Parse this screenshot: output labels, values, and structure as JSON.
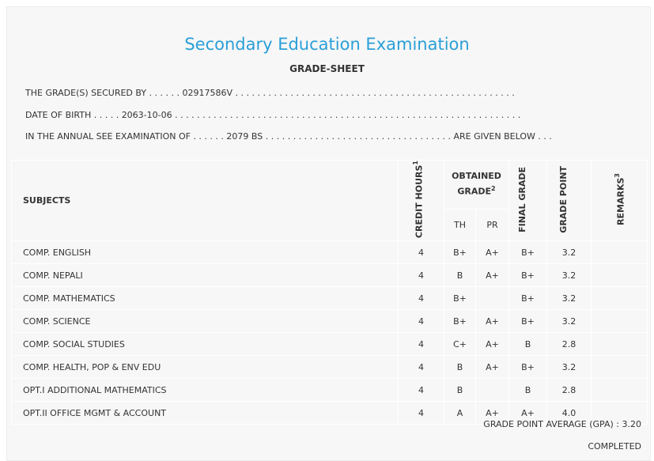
{
  "header": {
    "title": "Secondary Education Examination",
    "subtitle": "GRADE-SHEET"
  },
  "info": {
    "secured_by_label": "THE GRADE(S) SECURED BY . . . . . .",
    "secured_by_value": "02917586V",
    "secured_by_tail": ". . . . . . . . . . . . . . . . . . . . . . . . . . . . . . . . . . . . . . . . . . . . . . . . . . .",
    "dob_label": "DATE OF BIRTH . . . . .",
    "dob_value": "2063-10-06",
    "dob_tail": ". . . . . . . . . . . . . . . . . . . . . . . . . . . . . . . . . . . . . . . . . . . . . . . . . . . . . . . . . . . . . . .",
    "exam_label": "IN THE ANNUAL SEE EXAMINATION OF . . . . . .",
    "exam_value": "2079 BS",
    "exam_tail": ". . . . . . . . . . . . . . . . . . . . . . . . . . . . . . . . . . ARE GIVEN BELOW . . ."
  },
  "table": {
    "headers": {
      "subjects": "SUBJECTS",
      "credit": "CREDIT HOURS",
      "credit_sup": "1",
      "obtained": "OBTAINED GRADE",
      "obtained_sup": "2",
      "th": "TH",
      "pr": "PR",
      "final": "FINAL GRADE",
      "point": "GRADE POINT",
      "remarks": "REMARKS",
      "remarks_sup": "3"
    },
    "rows": [
      {
        "subject": "COMP. ENGLISH",
        "credit": "4",
        "th": "B+",
        "pr": "A+",
        "final": "B+",
        "point": "3.2",
        "remarks": ""
      },
      {
        "subject": "COMP. NEPALI",
        "credit": "4",
        "th": "B",
        "pr": "A+",
        "final": "B+",
        "point": "3.2",
        "remarks": ""
      },
      {
        "subject": "COMP. MATHEMATICS",
        "credit": "4",
        "th": "B+",
        "pr": "",
        "final": "B+",
        "point": "3.2",
        "remarks": ""
      },
      {
        "subject": "COMP. SCIENCE",
        "credit": "4",
        "th": "B+",
        "pr": "A+",
        "final": "B+",
        "point": "3.2",
        "remarks": ""
      },
      {
        "subject": "COMP. SOCIAL STUDIES",
        "credit": "4",
        "th": "C+",
        "pr": "A+",
        "final": "B",
        "point": "2.8",
        "remarks": ""
      },
      {
        "subject": "COMP. HEALTH, POP & ENV EDU",
        "credit": "4",
        "th": "B",
        "pr": "A+",
        "final": "B+",
        "point": "3.2",
        "remarks": ""
      },
      {
        "subject": "OPT.I ADDITIONAL MATHEMATICS",
        "credit": "4",
        "th": "B",
        "pr": "",
        "final": "B",
        "point": "2.8",
        "remarks": ""
      },
      {
        "subject": "OPT.II OFFICE MGMT & ACCOUNT",
        "credit": "4",
        "th": "A",
        "pr": "A+",
        "final": "A+",
        "point": "4.0",
        "remarks": ""
      }
    ]
  },
  "footer": {
    "gpa": "GRADE POINT AVERAGE (GPA) : 3.20",
    "status": "COMPLETED"
  },
  "colors": {
    "title": "#2a9fd8",
    "background": "#f7f7f7"
  }
}
